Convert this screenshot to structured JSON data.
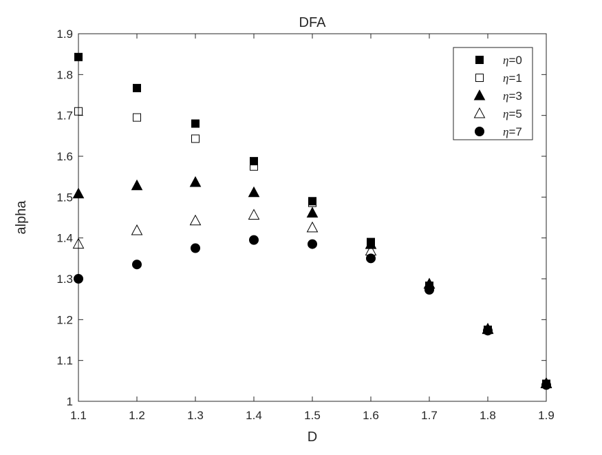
{
  "chart_data": {
    "type": "scatter",
    "title": "DFA",
    "xlabel": "D",
    "ylabel": "alpha",
    "xlim": [
      1.1,
      1.9
    ],
    "ylim": [
      1.0,
      1.9
    ],
    "xticks": [
      "1.1",
      "1.2",
      "1.3",
      "1.4",
      "1.5",
      "1.6",
      "1.7",
      "1.8",
      "1.9"
    ],
    "yticks": [
      "1",
      "1.1",
      "1.2",
      "1.3",
      "1.4",
      "1.5",
      "1.6",
      "1.7",
      "1.8",
      "1.9"
    ],
    "grid": false,
    "legend_position": "top-right",
    "x": [
      1.1,
      1.2,
      1.3,
      1.4,
      1.5,
      1.6,
      1.7,
      1.8,
      1.9
    ],
    "series": [
      {
        "name": "=0",
        "eta_label": "η",
        "marker": "square-filled",
        "values": [
          1.843,
          1.767,
          1.68,
          1.588,
          1.49,
          1.39,
          1.283,
          1.175,
          1.043
        ]
      },
      {
        "name": "=1",
        "eta_label": "η",
        "marker": "square-open",
        "values": [
          1.71,
          1.695,
          1.643,
          1.575,
          1.486,
          1.388,
          1.282,
          1.175,
          1.042
        ]
      },
      {
        "name": "=3",
        "eta_label": "η",
        "marker": "triangle-filled",
        "values": [
          1.508,
          1.528,
          1.536,
          1.511,
          1.461,
          1.384,
          1.287,
          1.177,
          1.044
        ]
      },
      {
        "name": "=5",
        "eta_label": "η",
        "marker": "triangle-open",
        "values": [
          1.385,
          1.418,
          1.442,
          1.456,
          1.425,
          1.368,
          1.287,
          1.176,
          1.043
        ]
      },
      {
        "name": "=7",
        "eta_label": "η",
        "marker": "circle-filled",
        "values": [
          1.3,
          1.335,
          1.375,
          1.395,
          1.385,
          1.35,
          1.273,
          1.173,
          1.04
        ]
      }
    ]
  }
}
